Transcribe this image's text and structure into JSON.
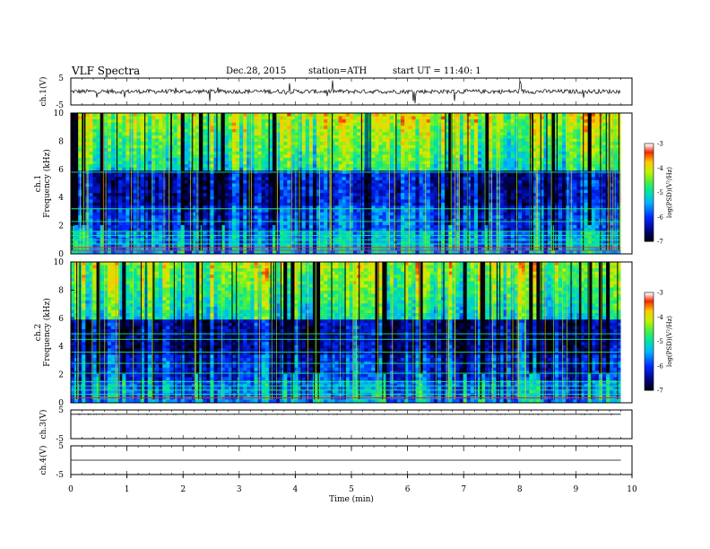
{
  "header": {
    "title": "VLF  Spectra",
    "date": "Dec.28, 2015",
    "station": "station=ATH",
    "start": "start  UT  =   11:40: 1"
  },
  "chart_data": [
    {
      "type": "line",
      "panel": "ch1-waveform",
      "ylabel": "ch.1(V)",
      "y_ticks": [
        "5",
        "-5"
      ],
      "ylim": [
        -5,
        5
      ],
      "baseline": 0
    },
    {
      "type": "heatmap",
      "panel": "ch1-spectrogram",
      "ylabel_top": "ch.1",
      "ylabel": "Frequency  (kHz)",
      "y_ticks": [
        "0",
        "2",
        "4",
        "6",
        "8",
        "10"
      ],
      "ylim": [
        0,
        10
      ],
      "colorbar": {
        "label": "log(PSD)(V²/Hz)",
        "ticks": [
          "-3",
          "-4",
          "-5",
          "-6",
          "-7"
        ],
        "range": [
          -7,
          -3
        ]
      }
    },
    {
      "type": "heatmap",
      "panel": "ch2-spectrogram",
      "ylabel_top": "ch.2",
      "ylabel": "Frequency  (kHz)",
      "y_ticks": [
        "0",
        "2",
        "4",
        "6",
        "8",
        "10"
      ],
      "ylim": [
        0,
        10
      ],
      "colorbar": {
        "label": "log(PSD)(V²/Hz)",
        "ticks": [
          "-3",
          "-4",
          "-5",
          "-6",
          "-7"
        ],
        "range": [
          -7,
          -3
        ]
      }
    },
    {
      "type": "line",
      "panel": "ch3-waveform",
      "ylabel": "ch.3(V)",
      "y_ticks": [
        "5",
        "-5"
      ],
      "ylim": [
        -5,
        5
      ],
      "baseline": 3.5
    },
    {
      "type": "line",
      "panel": "ch4-waveform",
      "ylabel": "ch.4(V)",
      "y_ticks": [
        "5",
        "-5"
      ],
      "ylim": [
        -5,
        5
      ],
      "baseline": 0
    }
  ],
  "x_axis": {
    "xlabel": "Time  (min)",
    "ticks": [
      "0",
      "1",
      "2",
      "3",
      "4",
      "5",
      "6",
      "7",
      "8",
      "9",
      "10"
    ],
    "xlim": [
      0,
      10
    ],
    "data_end": 9.8
  }
}
